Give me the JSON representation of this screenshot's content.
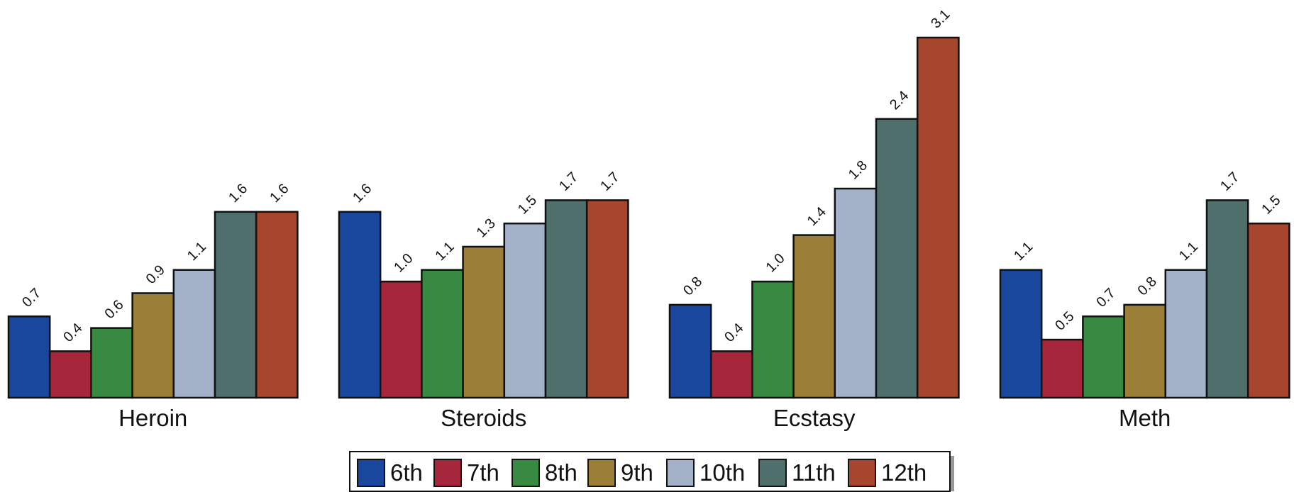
{
  "chart_data": {
    "type": "bar",
    "categories": [
      "Heroin",
      "Steroids",
      "Ecstasy",
      "Meth"
    ],
    "series": [
      {
        "name": "6th",
        "color": "#1a479e",
        "values": [
          0.7,
          1.6,
          0.8,
          1.1
        ]
      },
      {
        "name": "7th",
        "color": "#a6263b",
        "values": [
          0.4,
          1.0,
          0.4,
          0.5
        ]
      },
      {
        "name": "8th",
        "color": "#388a42",
        "values": [
          0.6,
          1.1,
          1.0,
          0.7
        ]
      },
      {
        "name": "9th",
        "color": "#9c7f37",
        "values": [
          0.9,
          1.3,
          1.4,
          0.8
        ]
      },
      {
        "name": "10th",
        "color": "#a3b1c9",
        "values": [
          1.1,
          1.5,
          1.8,
          1.1
        ]
      },
      {
        "name": "11th",
        "color": "#4f6f6d",
        "values": [
          1.6,
          1.7,
          2.4,
          1.7
        ]
      },
      {
        "name": "12th",
        "color": "#a8452d",
        "values": [
          1.6,
          1.7,
          3.1,
          1.5
        ]
      }
    ],
    "value_labels": [
      [
        "0.7",
        "1.6",
        "0.8",
        "1.1"
      ],
      [
        "0.4",
        "1.0",
        "0.4",
        "0.5"
      ],
      [
        "0.6",
        "1.1",
        "1.0",
        "0.7"
      ],
      [
        "0.9",
        "1.3",
        "1.4",
        "0.8"
      ],
      [
        "1.1",
        "1.5",
        "1.8",
        "1.1"
      ],
      [
        "1.6",
        "1.7",
        "2.4",
        "1.7"
      ],
      [
        "1.6",
        "1.7",
        "3.1",
        "1.5"
      ]
    ],
    "ylim": [
      0,
      3.1
    ],
    "grid": false,
    "legend_position": "bottom-center"
  }
}
